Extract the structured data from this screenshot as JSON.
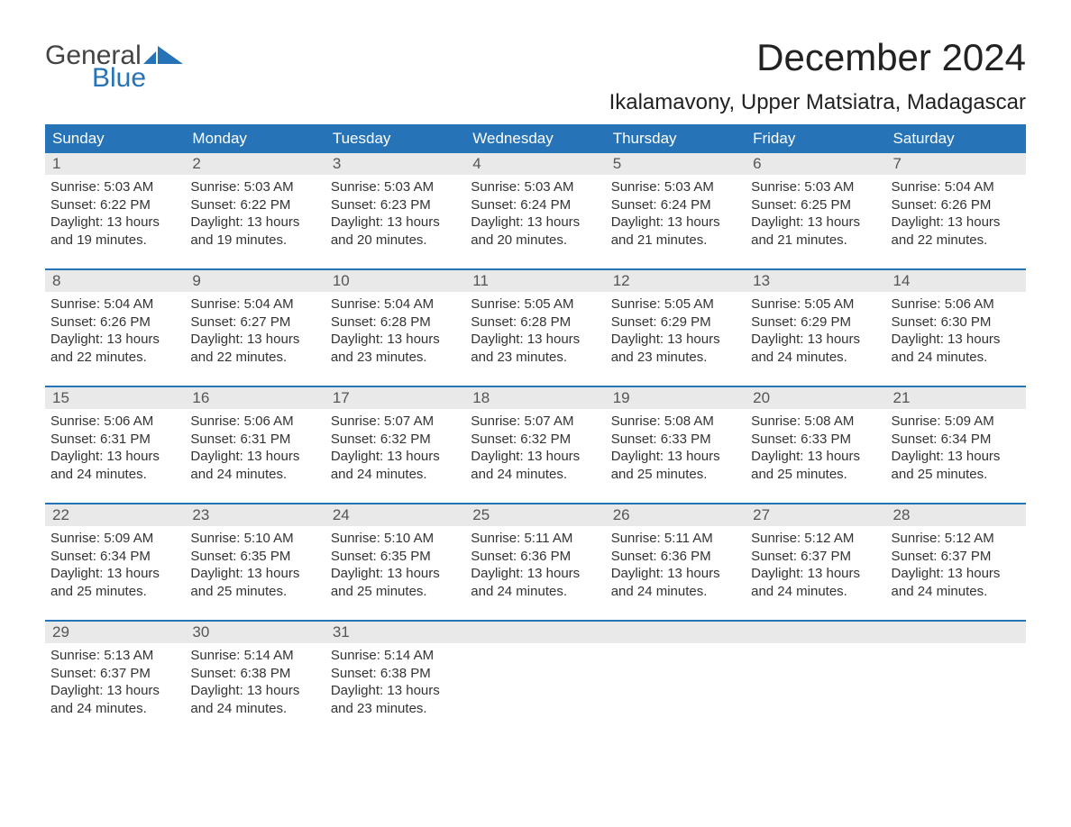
{
  "brand": {
    "word1": "General",
    "word2": "Blue"
  },
  "title": "December 2024",
  "location": "Ikalamavony, Upper Matsiatra, Madagascar",
  "colors": {
    "brand_blue": "#2673b8",
    "header_bg": "#2673b8",
    "header_text": "#ffffff",
    "daynum_bg": "#e9e9e9",
    "text": "#333333",
    "background": "#ffffff"
  },
  "font": {
    "family": "Arial",
    "title_size_pt": 32,
    "location_size_pt": 18,
    "body_size_pt": 11,
    "header_size_pt": 13
  },
  "day_names": [
    "Sunday",
    "Monday",
    "Tuesday",
    "Wednesday",
    "Thursday",
    "Friday",
    "Saturday"
  ],
  "weeks": [
    [
      {
        "n": "1",
        "sunrise": "Sunrise: 5:03 AM",
        "sunset": "Sunset: 6:22 PM",
        "d1": "Daylight: 13 hours",
        "d2": "and 19 minutes."
      },
      {
        "n": "2",
        "sunrise": "Sunrise: 5:03 AM",
        "sunset": "Sunset: 6:22 PM",
        "d1": "Daylight: 13 hours",
        "d2": "and 19 minutes."
      },
      {
        "n": "3",
        "sunrise": "Sunrise: 5:03 AM",
        "sunset": "Sunset: 6:23 PM",
        "d1": "Daylight: 13 hours",
        "d2": "and 20 minutes."
      },
      {
        "n": "4",
        "sunrise": "Sunrise: 5:03 AM",
        "sunset": "Sunset: 6:24 PM",
        "d1": "Daylight: 13 hours",
        "d2": "and 20 minutes."
      },
      {
        "n": "5",
        "sunrise": "Sunrise: 5:03 AM",
        "sunset": "Sunset: 6:24 PM",
        "d1": "Daylight: 13 hours",
        "d2": "and 21 minutes."
      },
      {
        "n": "6",
        "sunrise": "Sunrise: 5:03 AM",
        "sunset": "Sunset: 6:25 PM",
        "d1": "Daylight: 13 hours",
        "d2": "and 21 minutes."
      },
      {
        "n": "7",
        "sunrise": "Sunrise: 5:04 AM",
        "sunset": "Sunset: 6:26 PM",
        "d1": "Daylight: 13 hours",
        "d2": "and 22 minutes."
      }
    ],
    [
      {
        "n": "8",
        "sunrise": "Sunrise: 5:04 AM",
        "sunset": "Sunset: 6:26 PM",
        "d1": "Daylight: 13 hours",
        "d2": "and 22 minutes."
      },
      {
        "n": "9",
        "sunrise": "Sunrise: 5:04 AM",
        "sunset": "Sunset: 6:27 PM",
        "d1": "Daylight: 13 hours",
        "d2": "and 22 minutes."
      },
      {
        "n": "10",
        "sunrise": "Sunrise: 5:04 AM",
        "sunset": "Sunset: 6:28 PM",
        "d1": "Daylight: 13 hours",
        "d2": "and 23 minutes."
      },
      {
        "n": "11",
        "sunrise": "Sunrise: 5:05 AM",
        "sunset": "Sunset: 6:28 PM",
        "d1": "Daylight: 13 hours",
        "d2": "and 23 minutes."
      },
      {
        "n": "12",
        "sunrise": "Sunrise: 5:05 AM",
        "sunset": "Sunset: 6:29 PM",
        "d1": "Daylight: 13 hours",
        "d2": "and 23 minutes."
      },
      {
        "n": "13",
        "sunrise": "Sunrise: 5:05 AM",
        "sunset": "Sunset: 6:29 PM",
        "d1": "Daylight: 13 hours",
        "d2": "and 24 minutes."
      },
      {
        "n": "14",
        "sunrise": "Sunrise: 5:06 AM",
        "sunset": "Sunset: 6:30 PM",
        "d1": "Daylight: 13 hours",
        "d2": "and 24 minutes."
      }
    ],
    [
      {
        "n": "15",
        "sunrise": "Sunrise: 5:06 AM",
        "sunset": "Sunset: 6:31 PM",
        "d1": "Daylight: 13 hours",
        "d2": "and 24 minutes."
      },
      {
        "n": "16",
        "sunrise": "Sunrise: 5:06 AM",
        "sunset": "Sunset: 6:31 PM",
        "d1": "Daylight: 13 hours",
        "d2": "and 24 minutes."
      },
      {
        "n": "17",
        "sunrise": "Sunrise: 5:07 AM",
        "sunset": "Sunset: 6:32 PM",
        "d1": "Daylight: 13 hours",
        "d2": "and 24 minutes."
      },
      {
        "n": "18",
        "sunrise": "Sunrise: 5:07 AM",
        "sunset": "Sunset: 6:32 PM",
        "d1": "Daylight: 13 hours",
        "d2": "and 24 minutes."
      },
      {
        "n": "19",
        "sunrise": "Sunrise: 5:08 AM",
        "sunset": "Sunset: 6:33 PM",
        "d1": "Daylight: 13 hours",
        "d2": "and 25 minutes."
      },
      {
        "n": "20",
        "sunrise": "Sunrise: 5:08 AM",
        "sunset": "Sunset: 6:33 PM",
        "d1": "Daylight: 13 hours",
        "d2": "and 25 minutes."
      },
      {
        "n": "21",
        "sunrise": "Sunrise: 5:09 AM",
        "sunset": "Sunset: 6:34 PM",
        "d1": "Daylight: 13 hours",
        "d2": "and 25 minutes."
      }
    ],
    [
      {
        "n": "22",
        "sunrise": "Sunrise: 5:09 AM",
        "sunset": "Sunset: 6:34 PM",
        "d1": "Daylight: 13 hours",
        "d2": "and 25 minutes."
      },
      {
        "n": "23",
        "sunrise": "Sunrise: 5:10 AM",
        "sunset": "Sunset: 6:35 PM",
        "d1": "Daylight: 13 hours",
        "d2": "and 25 minutes."
      },
      {
        "n": "24",
        "sunrise": "Sunrise: 5:10 AM",
        "sunset": "Sunset: 6:35 PM",
        "d1": "Daylight: 13 hours",
        "d2": "and 25 minutes."
      },
      {
        "n": "25",
        "sunrise": "Sunrise: 5:11 AM",
        "sunset": "Sunset: 6:36 PM",
        "d1": "Daylight: 13 hours",
        "d2": "and 24 minutes."
      },
      {
        "n": "26",
        "sunrise": "Sunrise: 5:11 AM",
        "sunset": "Sunset: 6:36 PM",
        "d1": "Daylight: 13 hours",
        "d2": "and 24 minutes."
      },
      {
        "n": "27",
        "sunrise": "Sunrise: 5:12 AM",
        "sunset": "Sunset: 6:37 PM",
        "d1": "Daylight: 13 hours",
        "d2": "and 24 minutes."
      },
      {
        "n": "28",
        "sunrise": "Sunrise: 5:12 AM",
        "sunset": "Sunset: 6:37 PM",
        "d1": "Daylight: 13 hours",
        "d2": "and 24 minutes."
      }
    ],
    [
      {
        "n": "29",
        "sunrise": "Sunrise: 5:13 AM",
        "sunset": "Sunset: 6:37 PM",
        "d1": "Daylight: 13 hours",
        "d2": "and 24 minutes."
      },
      {
        "n": "30",
        "sunrise": "Sunrise: 5:14 AM",
        "sunset": "Sunset: 6:38 PM",
        "d1": "Daylight: 13 hours",
        "d2": "and 24 minutes."
      },
      {
        "n": "31",
        "sunrise": "Sunrise: 5:14 AM",
        "sunset": "Sunset: 6:38 PM",
        "d1": "Daylight: 13 hours",
        "d2": "and 23 minutes."
      },
      null,
      null,
      null,
      null
    ]
  ]
}
